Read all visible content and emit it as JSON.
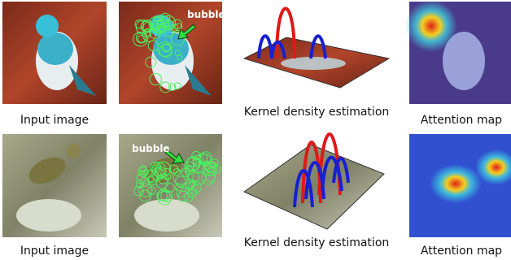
{
  "rows": [
    {
      "input_caption": "Input image",
      "bubble_label": "bubble",
      "kde_caption": "Kernel density estimation",
      "attention_caption": "Attention map"
    },
    {
      "input_caption": "Input image",
      "bubble_label": "bubble",
      "kde_caption": "Kernel density estimation",
      "attention_caption": "Attention map"
    }
  ]
}
